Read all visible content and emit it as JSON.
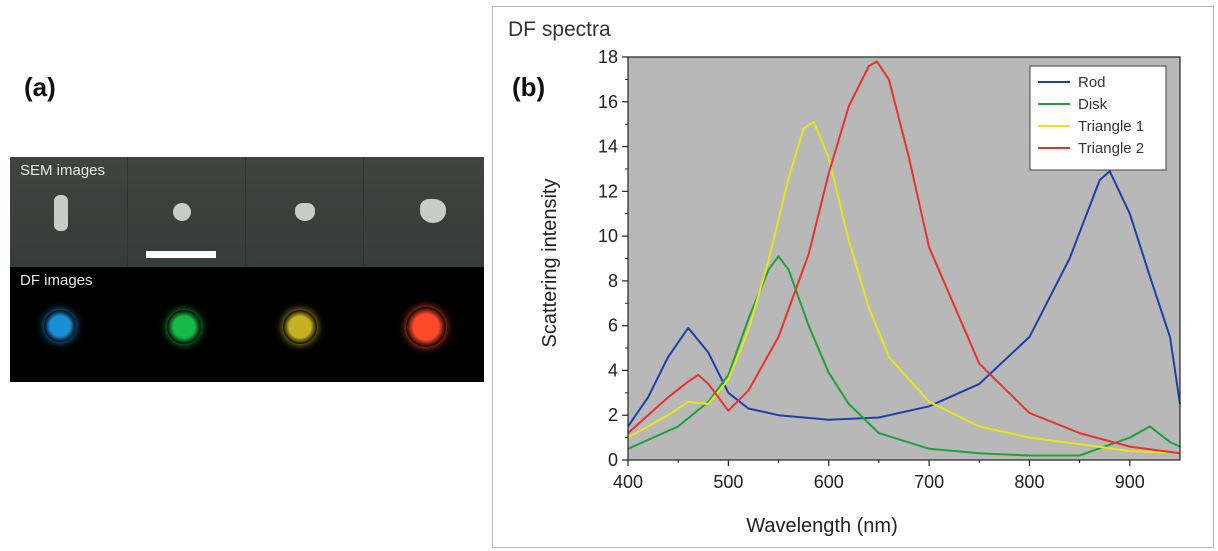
{
  "panel_a": {
    "label": "(a)",
    "sem_label": "SEM images",
    "df_label": "DF images",
    "df_spot_colors": [
      "#1a8fd6",
      "#16b848",
      "#c4b020",
      "#ff4a2a"
    ]
  },
  "panel_b": {
    "label": "(b)",
    "frame_title": "DF spectra"
  },
  "chart_data": {
    "type": "line",
    "title": "",
    "xlabel": "Wavelength (nm)",
    "ylabel": "Scattering intensity",
    "xlim": [
      400,
      950
    ],
    "ylim": [
      0,
      18
    ],
    "xticks": [
      400,
      500,
      600,
      700,
      800,
      900
    ],
    "yticks": [
      0,
      2,
      4,
      6,
      8,
      10,
      12,
      14,
      16,
      18
    ],
    "grid": false,
    "legend_position": "top-right",
    "background": "#b8b8b8",
    "series": [
      {
        "name": "Rod",
        "color": "#1f3fa8",
        "x": [
          400,
          420,
          440,
          460,
          480,
          500,
          520,
          550,
          600,
          650,
          700,
          750,
          800,
          840,
          870,
          880,
          900,
          920,
          940,
          950
        ],
        "y": [
          1.5,
          2.8,
          4.6,
          5.9,
          4.8,
          3.0,
          2.3,
          2.0,
          1.8,
          1.9,
          2.4,
          3.4,
          5.5,
          9.0,
          12.5,
          12.9,
          11.0,
          8.2,
          5.5,
          2.5
        ]
      },
      {
        "name": "Disk",
        "color": "#1ea13a",
        "x": [
          400,
          450,
          480,
          500,
          520,
          540,
          550,
          560,
          580,
          600,
          620,
          650,
          700,
          750,
          800,
          850,
          900,
          920,
          940,
          950
        ],
        "y": [
          0.5,
          1.5,
          2.6,
          3.8,
          6.3,
          8.5,
          9.1,
          8.5,
          6.0,
          3.9,
          2.5,
          1.2,
          0.5,
          0.3,
          0.2,
          0.2,
          1.0,
          1.5,
          0.8,
          0.6
        ]
      },
      {
        "name": "Triangle 1",
        "color": "#e6e61e",
        "x": [
          400,
          440,
          460,
          480,
          500,
          520,
          540,
          560,
          575,
          585,
          600,
          620,
          640,
          660,
          700,
          750,
          800,
          850,
          900,
          950
        ],
        "y": [
          1.0,
          2.0,
          2.6,
          2.5,
          3.6,
          5.8,
          8.9,
          12.6,
          14.8,
          15.1,
          13.5,
          9.8,
          6.8,
          4.6,
          2.6,
          1.5,
          1.0,
          0.7,
          0.4,
          0.3
        ]
      },
      {
        "name": "Triangle 2",
        "color": "#e8322e",
        "x": [
          400,
          440,
          460,
          470,
          480,
          500,
          520,
          550,
          580,
          600,
          620,
          640,
          648,
          660,
          680,
          700,
          750,
          800,
          850,
          900,
          950
        ],
        "y": [
          1.2,
          2.8,
          3.5,
          3.8,
          3.4,
          2.2,
          3.1,
          5.5,
          9.2,
          12.8,
          15.8,
          17.6,
          17.8,
          17.0,
          13.5,
          9.5,
          4.3,
          2.1,
          1.2,
          0.6,
          0.3
        ]
      }
    ]
  }
}
